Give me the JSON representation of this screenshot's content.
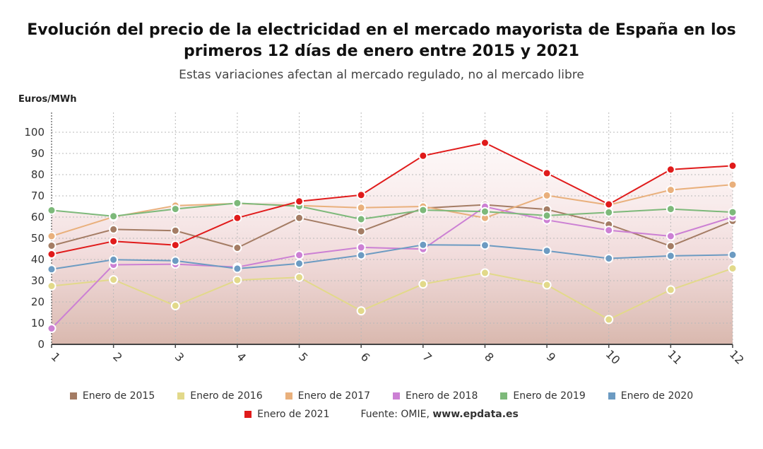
{
  "title_line1": "Evolución del precio de la electricidad en el mercado mayorista de España en los",
  "title_line2": "primeros 12 días de enero entre 2015 y 2021",
  "subtitle": "Estas variaciones afectan al mercado regulado, no al mercado libre",
  "source_label": "Fuente: OMIE, ",
  "source_site": "www.epdata.es",
  "chart_data": {
    "type": "line",
    "ylabel": "Euros/MWh",
    "xlabel": "",
    "ylim": [
      0,
      100
    ],
    "yticks": [
      0,
      10,
      20,
      30,
      40,
      50,
      60,
      70,
      80,
      90,
      100
    ],
    "grid": true,
    "legend_position": "bottom",
    "x": [
      "1",
      "2",
      "3",
      "4",
      "5",
      "6",
      "7",
      "8",
      "9",
      "10",
      "11",
      "12"
    ],
    "series": [
      {
        "name": "Enero de 2015",
        "color": "#a47c64",
        "values": [
          46.5,
          54.2,
          53.6,
          45.5,
          59.6,
          53.3,
          64.2,
          65.8,
          63.6,
          56.5,
          46.3,
          58.2
        ]
      },
      {
        "name": "Enero de 2016",
        "color": "#e2d98a",
        "values": [
          27.5,
          30.5,
          18.2,
          30.3,
          31.6,
          15.8,
          28.4,
          33.7,
          28.0,
          11.7,
          25.7,
          35.8
        ]
      },
      {
        "name": "Enero de 2017",
        "color": "#e9b07c",
        "values": [
          51.0,
          60.1,
          65.4,
          66.4,
          65.4,
          64.4,
          65.0,
          59.6,
          70.2,
          65.7,
          72.8,
          75.3
        ]
      },
      {
        "name": "Enero de 2018",
        "color": "#cc80d4",
        "values": [
          7.5,
          37.5,
          37.8,
          36.4,
          42.1,
          45.7,
          44.9,
          64.9,
          58.6,
          53.8,
          51.0,
          60.0
        ]
      },
      {
        "name": "Enero de 2019",
        "color": "#7db97a",
        "values": [
          63.2,
          60.4,
          63.8,
          66.6,
          65.1,
          59.0,
          63.3,
          62.6,
          60.7,
          62.2,
          63.8,
          62.3
        ]
      },
      {
        "name": "Enero de 2020",
        "color": "#6c9bc2",
        "values": [
          35.4,
          39.9,
          39.4,
          35.7,
          38.1,
          42.0,
          46.9,
          46.7,
          44.1,
          40.5,
          41.7,
          42.2
        ]
      },
      {
        "name": "Enero de 2021",
        "color": "#e01b1b",
        "values": [
          42.5,
          48.6,
          46.8,
          59.6,
          67.4,
          70.4,
          88.9,
          95.0,
          80.7,
          66.0,
          82.4,
          84.2
        ]
      }
    ]
  }
}
